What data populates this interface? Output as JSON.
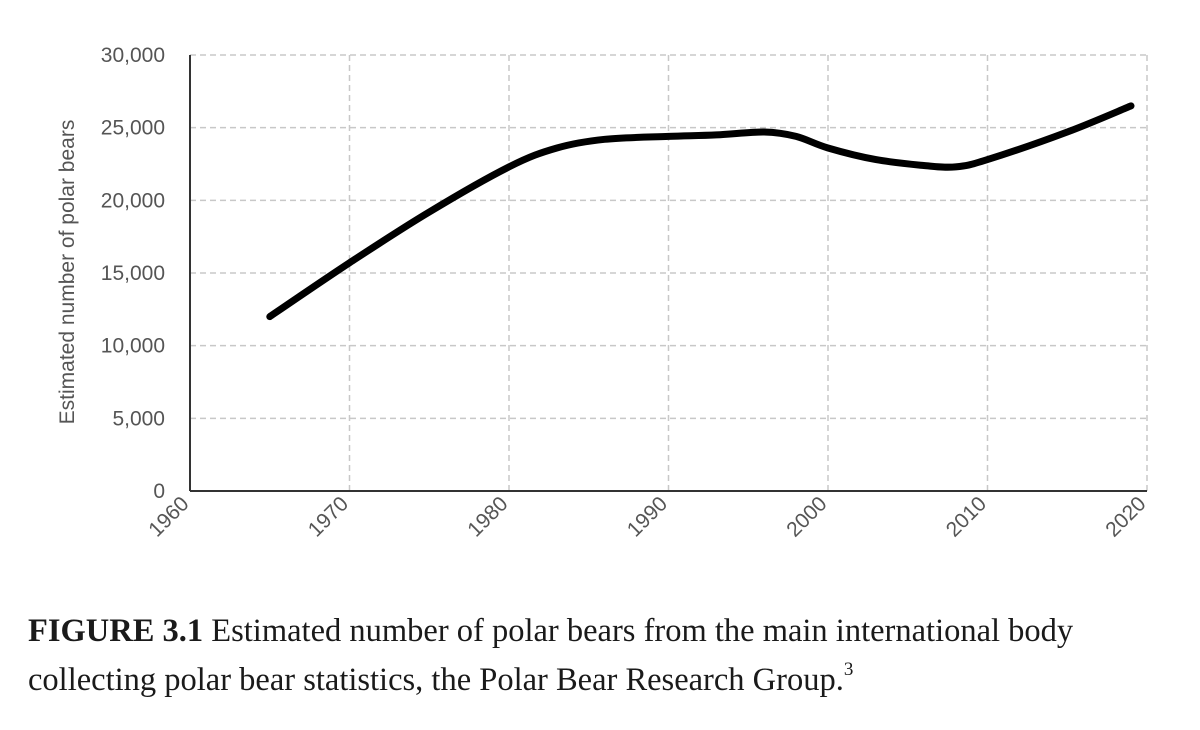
{
  "chart_data": {
    "type": "line",
    "title": "",
    "xlabel": "",
    "ylabel": "Estimated number of polar bears",
    "xlim": [
      1960,
      2020
    ],
    "ylim": [
      0,
      30000
    ],
    "xticks": [
      1960,
      1970,
      1980,
      1990,
      2000,
      2010,
      2020
    ],
    "yticks": [
      0,
      5000,
      10000,
      15000,
      20000,
      25000,
      30000
    ],
    "xtick_labels": [
      "1960",
      "1970",
      "1980",
      "1990",
      "2000",
      "2010",
      "2020"
    ],
    "ytick_labels": [
      "0",
      "5,000",
      "10,000",
      "15,000",
      "20,000",
      "25,000",
      "30,000"
    ],
    "grid": true,
    "line_color": "#000000",
    "series": [
      {
        "x": [
          1965,
          1970,
          1975,
          1980,
          1983,
          1986,
          1990,
          1993,
          1996,
          1998,
          2000,
          2003,
          2006,
          2008,
          2010,
          2015,
          2019
        ],
        "values": [
          12000,
          15700,
          19200,
          22300,
          23600,
          24200,
          24400,
          24500,
          24700,
          24400,
          23600,
          22800,
          22400,
          22300,
          22800,
          24700,
          26500
        ]
      }
    ]
  },
  "caption": {
    "label": "FIGURE 3.1",
    "text": " Estimated number of polar bears from the main international body collecting polar bear statistics, the Polar Bear Research Group.",
    "footnote": "3"
  }
}
